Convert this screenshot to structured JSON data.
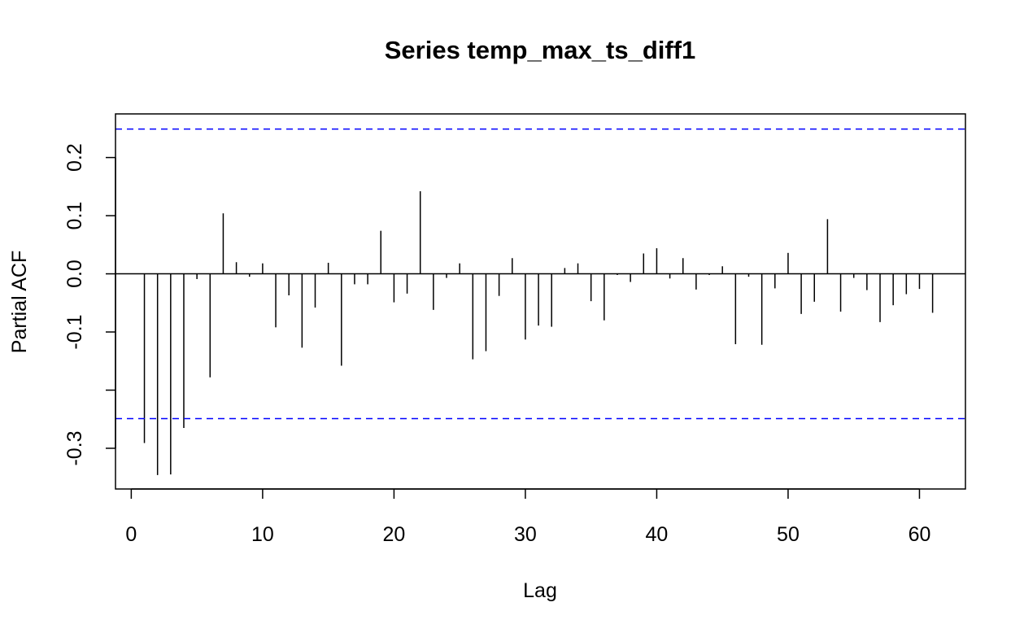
{
  "chart_data": {
    "type": "bar",
    "title": "Series  temp_max_ts_diff1",
    "xlabel": "Lag",
    "ylabel": "Partial ACF",
    "xlim": [
      -1.2,
      63.5
    ],
    "ylim": [
      -0.37,
      0.275
    ],
    "xticks": [
      0,
      10,
      20,
      30,
      40,
      50,
      60
    ],
    "xtick_labels": [
      "0",
      "10",
      "20",
      "30",
      "40",
      "50",
      "60"
    ],
    "yticks": [
      -0.3,
      -0.2,
      -0.1,
      0.0,
      0.1,
      0.2
    ],
    "ytick_labels": [
      "-0.3",
      "",
      "-0.1",
      "0.0",
      "0.1",
      "0.2"
    ],
    "confidence_bound": 0.249,
    "confidence_color": "#0000ff",
    "grid": false,
    "legend": "none",
    "lags": [
      1,
      2,
      3,
      4,
      5,
      6,
      7,
      8,
      9,
      10,
      11,
      12,
      13,
      14,
      15,
      16,
      17,
      18,
      19,
      20,
      21,
      22,
      23,
      24,
      25,
      26,
      27,
      28,
      29,
      30,
      31,
      32,
      33,
      34,
      35,
      36,
      37,
      38,
      39,
      40,
      41,
      42,
      43,
      44,
      45,
      46,
      47,
      48,
      49,
      50,
      51,
      52,
      53,
      54,
      55,
      56,
      57,
      58,
      59,
      60,
      61
    ],
    "values": [
      -0.291,
      -0.346,
      -0.345,
      -0.265,
      -0.009,
      -0.178,
      0.104,
      0.02,
      -0.005,
      0.018,
      -0.092,
      -0.037,
      -0.127,
      -0.058,
      0.019,
      -0.158,
      -0.018,
      -0.018,
      0.074,
      -0.049,
      -0.034,
      0.142,
      -0.062,
      -0.007,
      0.018,
      -0.147,
      -0.133,
      -0.038,
      0.027,
      -0.113,
      -0.089,
      -0.091,
      0.01,
      0.018,
      -0.047,
      -0.08,
      -0.002,
      -0.014,
      0.035,
      0.044,
      -0.008,
      0.027,
      -0.027,
      -0.002,
      0.013,
      -0.121,
      -0.005,
      -0.122,
      -0.025,
      0.036,
      -0.069,
      -0.048,
      0.094,
      -0.065,
      -0.007,
      -0.028,
      -0.083,
      -0.054,
      -0.035,
      -0.026,
      -0.067
    ]
  }
}
